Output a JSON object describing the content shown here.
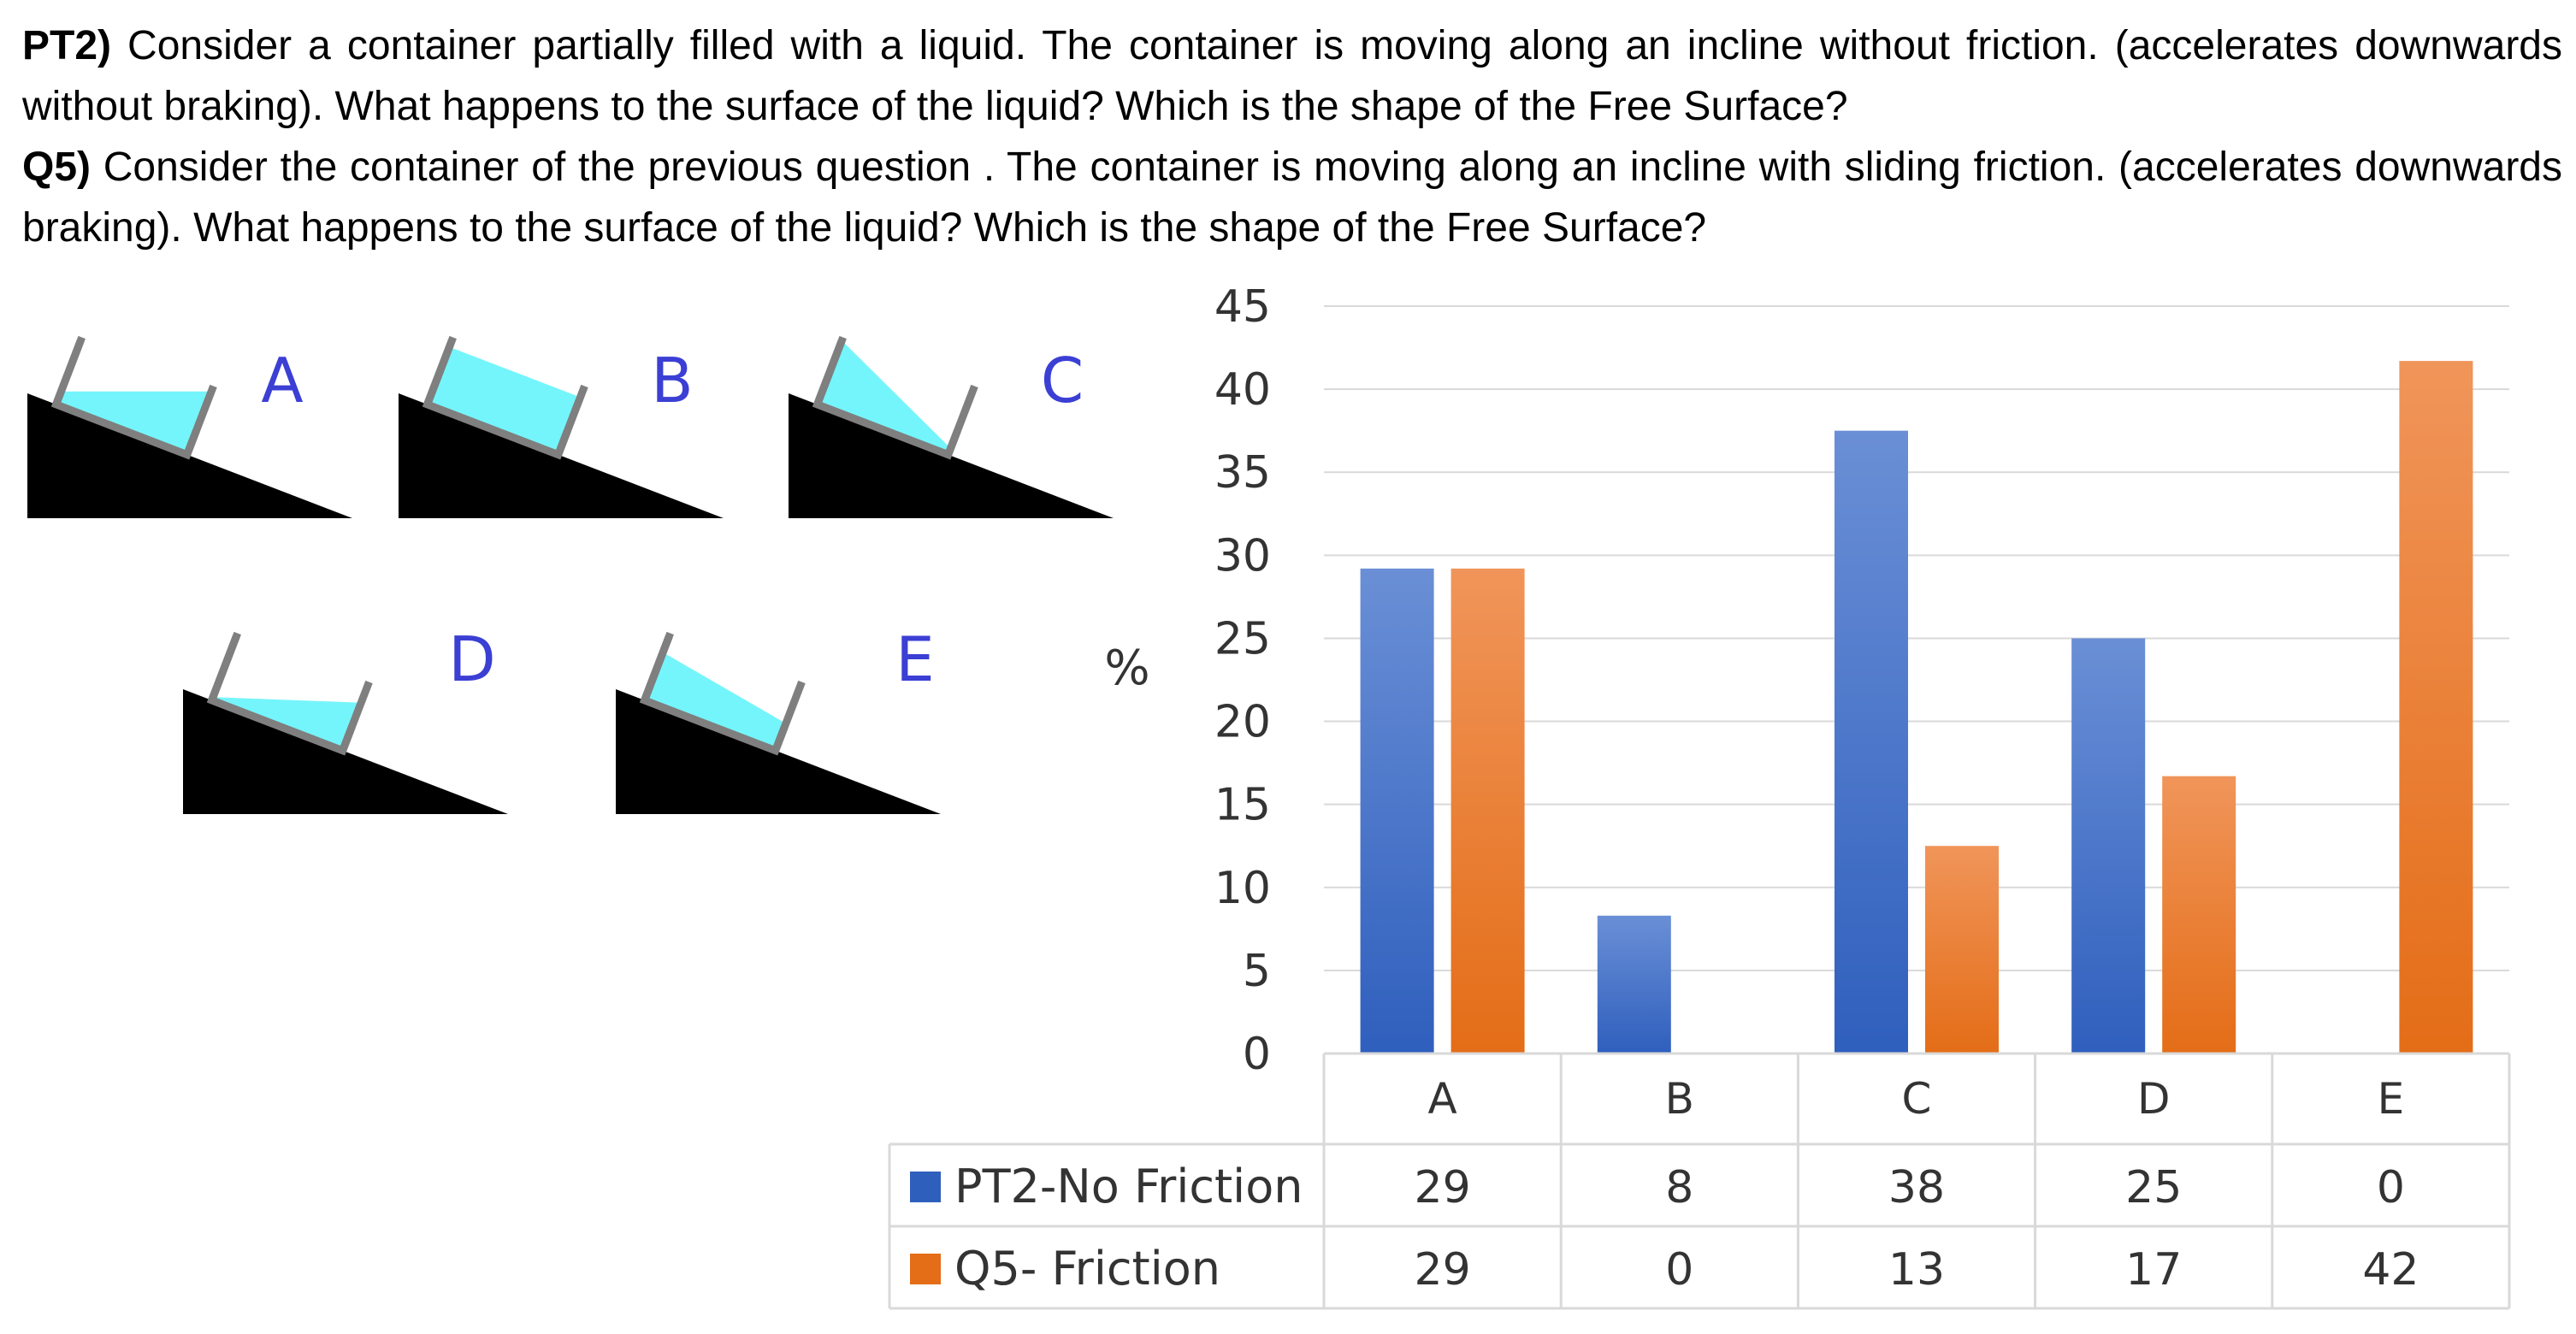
{
  "question": {
    "pt2_label": "PT2)",
    "pt2_text": " Consider a container partially filled with a liquid. The container is moving along an incline without friction. (accelerates downwards without braking). What happens to the surface of the liquid? Which is the shape of the Free Surface?",
    "q5_label": "Q5)",
    "q5_text": " Consider the container of the previous question . The container is moving along an incline with sliding friction. (accelerates downwards braking). What happens to the surface of the liquid? Which is the shape of the Free Surface?"
  },
  "diagrams": [
    {
      "letter": "A",
      "surface": "horizontal"
    },
    {
      "letter": "B",
      "surface": "parallel-to-incline"
    },
    {
      "letter": "C",
      "surface": "steeper-than-incline"
    },
    {
      "letter": "D",
      "surface": "tilted-up-front"
    },
    {
      "letter": "E",
      "surface": "between-horizontal-and-incline"
    }
  ],
  "colors": {
    "liquid": "#74f5fb",
    "incline": "#000000",
    "container": "#7f7f7f",
    "letter": "#3b3fd4",
    "series_blue_top": "#6a8fd6",
    "series_blue_bottom": "#2f5fbd",
    "series_orange_top": "#f0955a",
    "series_orange_bottom": "#e46d17",
    "grid": "#d9d9d9"
  },
  "chart_data": {
    "type": "bar",
    "categories": [
      "A",
      "B",
      "C",
      "D",
      "E"
    ],
    "ylabel": "%",
    "ylim": [
      0,
      45
    ],
    "yticks": [
      0,
      5,
      10,
      15,
      20,
      25,
      30,
      35,
      40,
      45
    ],
    "grid": true,
    "legend": "data-table",
    "series": [
      {
        "name": "PT2-No Friction",
        "values": [
          29,
          8,
          38,
          25,
          0
        ],
        "bar_values": [
          29.2,
          8.3,
          37.5,
          25.0,
          0
        ]
      },
      {
        "name": "Q5- Friction",
        "values": [
          29,
          0,
          13,
          17,
          42
        ],
        "bar_values": [
          29.2,
          0,
          12.5,
          16.7,
          41.7
        ]
      }
    ]
  }
}
